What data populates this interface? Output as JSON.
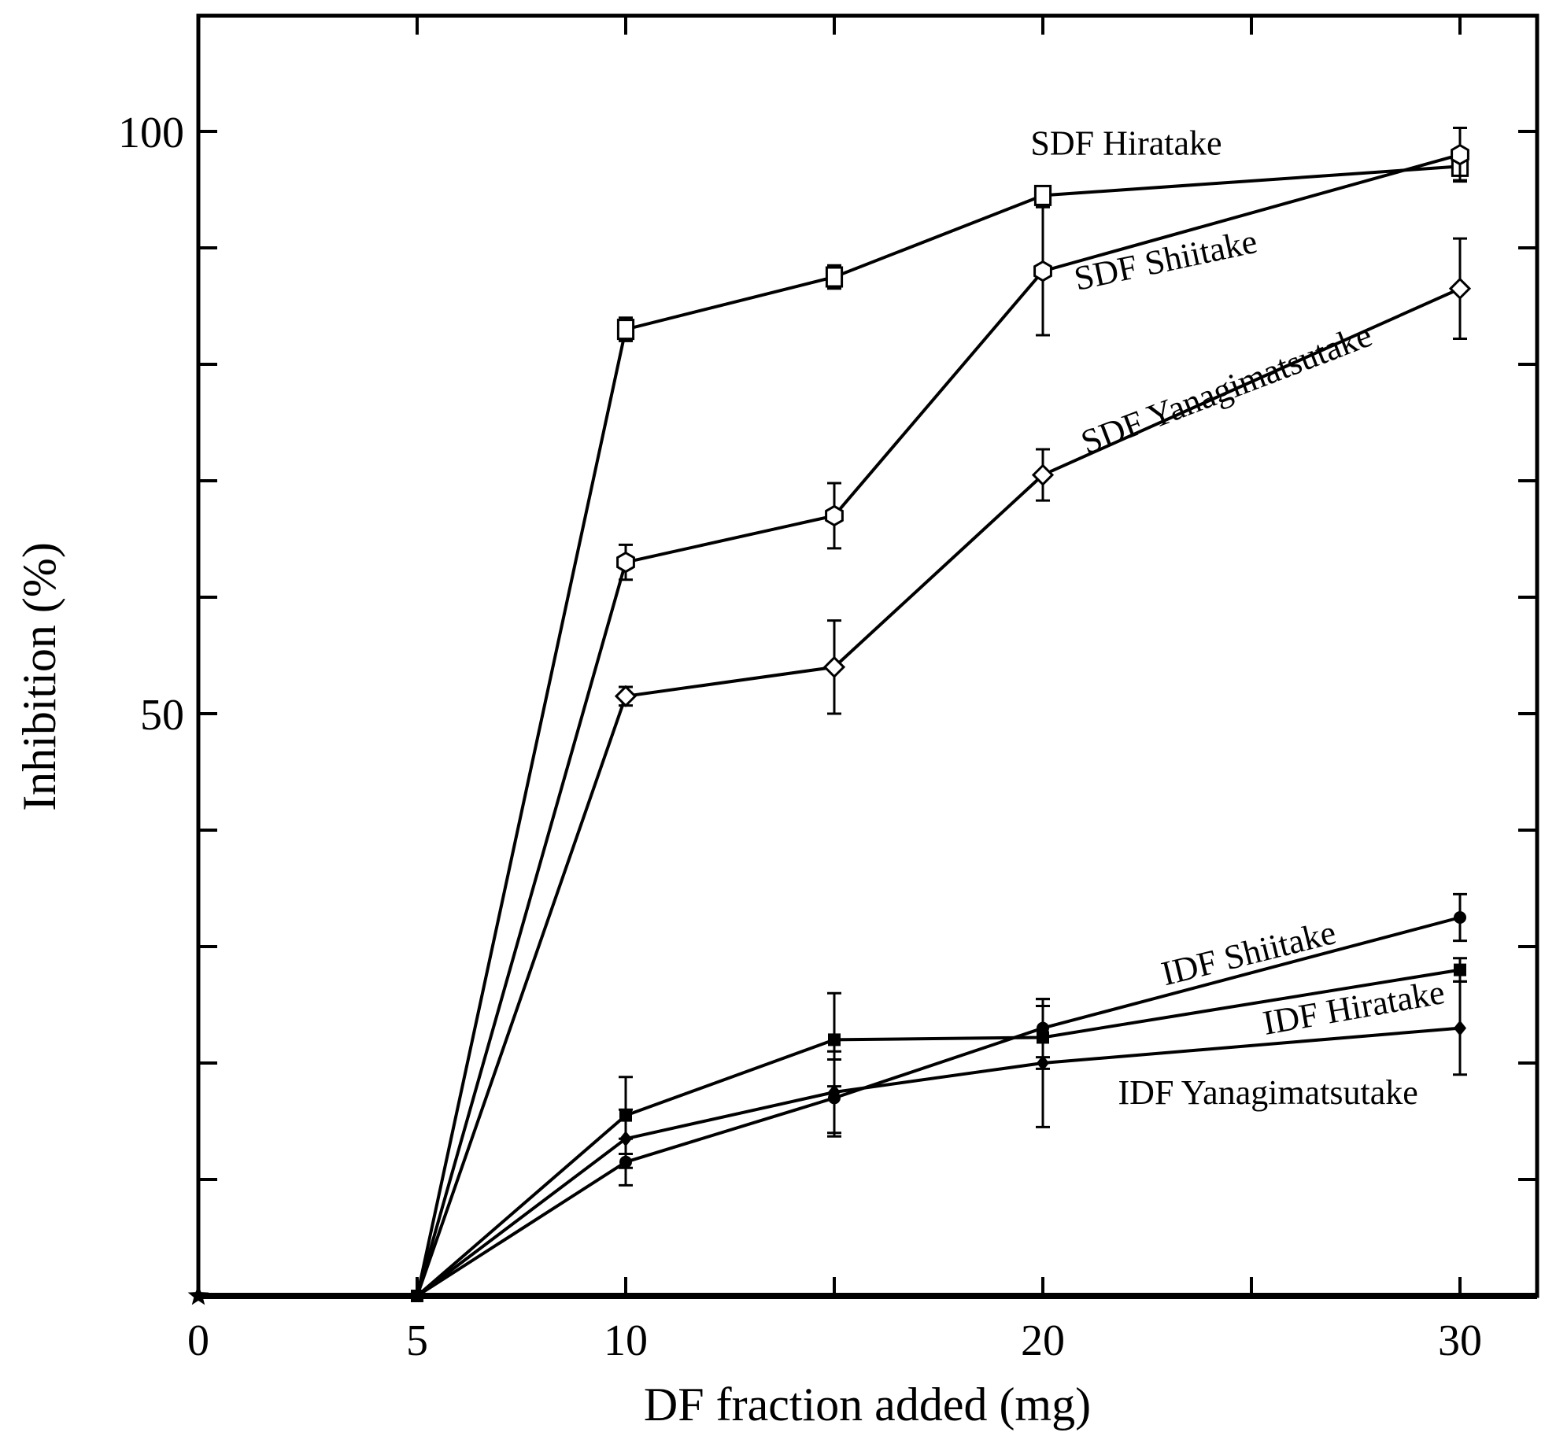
{
  "chart_data": {
    "type": "line",
    "title": "",
    "xlabel": "DF fraction added (mg)",
    "ylabel": "Inhibition (%)",
    "x_tick_labels": [
      "0",
      "5",
      "10",
      "20",
      "30"
    ],
    "y_tick_labels": [
      "50",
      "100"
    ],
    "x_ticks": [
      0,
      5,
      10,
      15,
      20,
      25,
      30
    ],
    "y_ticks": [
      0,
      10,
      20,
      30,
      40,
      50,
      60,
      70,
      80,
      90,
      100
    ],
    "xlim": [
      0,
      32
    ],
    "ylim": [
      0,
      110
    ],
    "series": [
      {
        "name": "SDF Hiratake",
        "marker": "square-open",
        "points": [
          {
            "x": 5,
            "y": 0
          },
          {
            "x": 10,
            "y": 83,
            "err": 1
          },
          {
            "x": 15,
            "y": 87.5,
            "err": 1
          },
          {
            "x": 20,
            "y": 94.5,
            "err": 0.8
          },
          {
            "x": 30,
            "y": 97,
            "err": 1.2
          }
        ]
      },
      {
        "name": "SDF Shiitake",
        "marker": "hexagon-open",
        "points": [
          {
            "x": 5,
            "y": 0
          },
          {
            "x": 10,
            "y": 63,
            "err": 1.5
          },
          {
            "x": 15,
            "y": 67,
            "err": 2.8
          },
          {
            "x": 20,
            "y": 88,
            "err": 5.5
          },
          {
            "x": 30,
            "y": 98,
            "err": 2.3
          }
        ]
      },
      {
        "name": "SDF Yanagimatsutake",
        "marker": "diamond-open",
        "points": [
          {
            "x": 5,
            "y": 0
          },
          {
            "x": 10,
            "y": 51.5,
            "err": 0.8
          },
          {
            "x": 15,
            "y": 54,
            "err": 4
          },
          {
            "x": 20,
            "y": 70.5,
            "err": 2.2
          },
          {
            "x": 30,
            "y": 86.5,
            "err": 4.3
          }
        ]
      },
      {
        "name": "IDF Shiitake",
        "marker": "circle-filled",
        "points": [
          {
            "x": 5,
            "y": 0
          },
          {
            "x": 10,
            "y": 11.5,
            "err": 2
          },
          {
            "x": 15,
            "y": 17,
            "err": 3.3
          },
          {
            "x": 20,
            "y": 23,
            "err": 2.5
          },
          {
            "x": 30,
            "y": 32.5,
            "err": 2
          }
        ]
      },
      {
        "name": "IDF Hiratake",
        "marker": "square-filled",
        "points": [
          {
            "x": 5,
            "y": 0
          },
          {
            "x": 10,
            "y": 15.5,
            "err": 3.3
          },
          {
            "x": 15,
            "y": 22,
            "err": 4
          },
          {
            "x": 20,
            "y": 22.2,
            "err": 2.7
          },
          {
            "x": 30,
            "y": 28,
            "err": 1
          }
        ]
      },
      {
        "name": "IDF Yanagimatsutake",
        "marker": "diamond-filled",
        "points": [
          {
            "x": 5,
            "y": 0
          },
          {
            "x": 10,
            "y": 13.5,
            "err": 2.5
          },
          {
            "x": 15,
            "y": 17.5,
            "err": 3.5
          },
          {
            "x": 20,
            "y": 20,
            "err": 5.5
          },
          {
            "x": 30,
            "y": 23,
            "err": 4
          }
        ]
      }
    ],
    "extra_points": [
      {
        "x": 0,
        "y": 0,
        "marker": "star-filled"
      }
    ],
    "annotations": [
      {
        "text": "SDF Hiratake",
        "x": 22,
        "y": 98,
        "angle": 0
      },
      {
        "text": "SDF Shiitake",
        "x": 23,
        "y": 88,
        "angle": -12
      },
      {
        "text": "SDF Yanagimatsutake",
        "x": 24.5,
        "y": 77,
        "angle": -21
      },
      {
        "text": "IDF Shiitake",
        "x": 25,
        "y": 28.5,
        "angle": -14
      },
      {
        "text": "IDF Hiratake",
        "x": 27.5,
        "y": 23.8,
        "angle": -10
      },
      {
        "text": "IDF Yanagimatsutake",
        "x": 25.4,
        "y": 16.5,
        "angle": 0
      }
    ],
    "grid": false,
    "legend": "none"
  }
}
